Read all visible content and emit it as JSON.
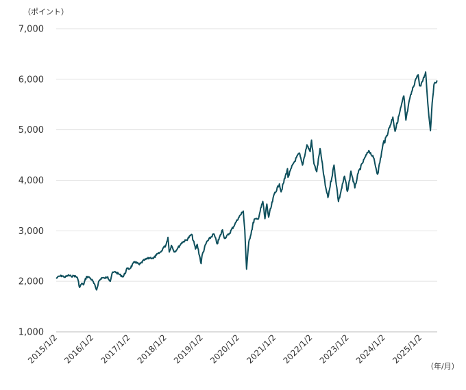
{
  "chart_data": {
    "type": "line",
    "y_unit_label": "（ポイント）",
    "x_unit_label": "（年/月）",
    "ylim": [
      1000,
      7000
    ],
    "y_ticks": [
      1000,
      2000,
      3000,
      4000,
      5000,
      6000,
      7000
    ],
    "y_tick_labels": [
      "1,000",
      "2,000",
      "3,000",
      "4,000",
      "5,000",
      "6,000",
      "7,000"
    ],
    "x_ticks": [
      "2015/1/2",
      "2016/1/2",
      "2017/1/2",
      "2018/1/2",
      "2019/1/2",
      "2020/1/2",
      "2021/1/2",
      "2022/1/2",
      "2023/1/2",
      "2024/1/2",
      "2025/1/2"
    ],
    "xlim": [
      "2015-01-02",
      "2025-06-15"
    ],
    "grid": true,
    "line_color": "#0e4f5c",
    "series": [
      {
        "points": [
          [
            "2015-01-02",
            2058
          ],
          [
            "2015-02-01",
            2100
          ],
          [
            "2015-03-01",
            2110
          ],
          [
            "2015-04-01",
            2080
          ],
          [
            "2015-05-01",
            2120
          ],
          [
            "2015-06-01",
            2100
          ],
          [
            "2015-07-01",
            2110
          ],
          [
            "2015-08-01",
            2080
          ],
          [
            "2015-08-25",
            1880
          ],
          [
            "2015-09-15",
            1960
          ],
          [
            "2015-10-01",
            1930
          ],
          [
            "2015-11-01",
            2090
          ],
          [
            "2015-12-01",
            2080
          ],
          [
            "2016-01-02",
            2010
          ],
          [
            "2016-02-11",
            1830
          ],
          [
            "2016-03-01",
            1990
          ],
          [
            "2016-04-01",
            2070
          ],
          [
            "2016-05-01",
            2060
          ],
          [
            "2016-06-01",
            2090
          ],
          [
            "2016-06-27",
            2000
          ],
          [
            "2016-07-15",
            2160
          ],
          [
            "2016-08-15",
            2190
          ],
          [
            "2016-09-15",
            2150
          ],
          [
            "2016-11-04",
            2090
          ],
          [
            "2016-12-15",
            2260
          ],
          [
            "2017-01-02",
            2240
          ],
          [
            "2017-03-01",
            2390
          ],
          [
            "2017-04-15",
            2330
          ],
          [
            "2017-06-01",
            2420
          ],
          [
            "2017-08-01",
            2470
          ],
          [
            "2017-09-01",
            2450
          ],
          [
            "2017-10-01",
            2520
          ],
          [
            "2017-11-15",
            2580
          ],
          [
            "2017-12-15",
            2680
          ],
          [
            "2018-01-02",
            2700
          ],
          [
            "2018-01-26",
            2870
          ],
          [
            "2018-02-08",
            2580
          ],
          [
            "2018-03-01",
            2710
          ],
          [
            "2018-04-02",
            2580
          ],
          [
            "2018-05-01",
            2650
          ],
          [
            "2018-06-15",
            2770
          ],
          [
            "2018-08-01",
            2820
          ],
          [
            "2018-09-20",
            2930
          ],
          [
            "2018-10-29",
            2640
          ],
          [
            "2018-11-15",
            2730
          ],
          [
            "2018-12-24",
            2350
          ],
          [
            "2019-01-02",
            2510
          ],
          [
            "2019-02-15",
            2770
          ],
          [
            "2019-04-30",
            2940
          ],
          [
            "2019-06-03",
            2740
          ],
          [
            "2019-07-26",
            3020
          ],
          [
            "2019-08-15",
            2850
          ],
          [
            "2019-10-01",
            2940
          ],
          [
            "2019-11-29",
            3140
          ],
          [
            "2020-01-02",
            3258
          ],
          [
            "2020-02-19",
            3390
          ],
          [
            "2020-03-05",
            3020
          ],
          [
            "2020-03-23",
            2240
          ],
          [
            "2020-04-15",
            2780
          ],
          [
            "2020-06-08",
            3230
          ],
          [
            "2020-07-15",
            3230
          ],
          [
            "2020-09-02",
            3580
          ],
          [
            "2020-09-23",
            3240
          ],
          [
            "2020-10-12",
            3530
          ],
          [
            "2020-10-30",
            3270
          ],
          [
            "2020-12-31",
            3760
          ],
          [
            "2021-01-02",
            3750
          ],
          [
            "2021-02-15",
            3930
          ],
          [
            "2021-03-04",
            3770
          ],
          [
            "2021-05-07",
            4230
          ],
          [
            "2021-05-12",
            4060
          ],
          [
            "2021-07-01",
            4320
          ],
          [
            "2021-09-02",
            4540
          ],
          [
            "2021-10-04",
            4300
          ],
          [
            "2021-11-18",
            4700
          ],
          [
            "2021-12-20",
            4570
          ],
          [
            "2022-01-03",
            4797
          ],
          [
            "2022-01-27",
            4330
          ],
          [
            "2022-02-24",
            4170
          ],
          [
            "2022-03-29",
            4630
          ],
          [
            "2022-05-20",
            3900
          ],
          [
            "2022-06-16",
            3660
          ],
          [
            "2022-08-16",
            4300
          ],
          [
            "2022-09-30",
            3580
          ],
          [
            "2022-11-30",
            4080
          ],
          [
            "2022-12-28",
            3780
          ],
          [
            "2023-01-03",
            3824
          ],
          [
            "2023-02-02",
            4180
          ],
          [
            "2023-03-13",
            3850
          ],
          [
            "2023-04-15",
            4140
          ],
          [
            "2023-06-15",
            4420
          ],
          [
            "2023-07-31",
            4590
          ],
          [
            "2023-09-15",
            4450
          ],
          [
            "2023-10-27",
            4120
          ],
          [
            "2023-12-28",
            4780
          ],
          [
            "2024-01-02",
            4742
          ],
          [
            "2024-03-28",
            5250
          ],
          [
            "2024-04-19",
            4970
          ],
          [
            "2024-07-16",
            5670
          ],
          [
            "2024-08-05",
            5190
          ],
          [
            "2024-09-15",
            5630
          ],
          [
            "2024-11-11",
            6000
          ],
          [
            "2024-12-06",
            6090
          ],
          [
            "2024-12-20",
            5870
          ],
          [
            "2025-01-02",
            5868
          ],
          [
            "2025-02-19",
            6144
          ],
          [
            "2025-03-13",
            5520
          ],
          [
            "2025-04-08",
            4982
          ],
          [
            "2025-04-25",
            5525
          ],
          [
            "2025-05-13",
            5890
          ],
          [
            "2025-06-13",
            5977
          ]
        ]
      }
    ]
  }
}
